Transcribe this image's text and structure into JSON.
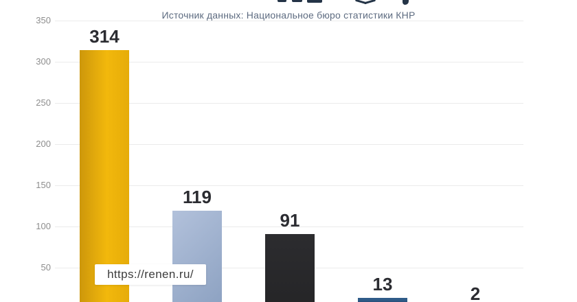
{
  "header": {
    "title_cut_off": true,
    "subtitle": "Источник данных: Национальное бюро статистики КНР",
    "title_color": "#243447",
    "subtitle_color": "#5d6b80"
  },
  "watermark": {
    "url": "https://renen.ru/"
  },
  "chart_data": {
    "type": "bar",
    "title": "",
    "subtitle": "Источник данных: Национальное бюро статистики КНР",
    "xlabel": "",
    "ylabel": "",
    "ylim": [
      0,
      350
    ],
    "yticks": [
      350,
      300,
      250,
      200,
      150,
      100,
      50
    ],
    "grid": true,
    "layout_note": "title and x-axis category labels are cropped outside the visible frame; y=0 baseline sits below the bottom edge",
    "values": [
      314,
      119,
      91,
      13,
      2
    ],
    "bars": [
      {
        "value": 314,
        "label": "314",
        "color": "#f0b60e",
        "css": "linear-gradient(90deg,#cd970b 0%,#f2b80c 55%,#e6ac09 100%)"
      },
      {
        "value": 119,
        "label": "119",
        "color": "#9cafce",
        "css": "linear-gradient(135deg,#b2c1db 0%,#8ca1c1 100%)"
      },
      {
        "value": 91,
        "label": "91",
        "color": "#272729",
        "css": "linear-gradient(180deg,#2c2c2f 0%,#252527 100%)"
      },
      {
        "value": 13,
        "label": "13",
        "color": "#1d3d63",
        "css": "linear-gradient(180deg,#2f5b88 0%,#2f5b88 22%,#1c3c62 60%,#1d3d63 100%)"
      },
      {
        "value": 2,
        "label": "2",
        "color": "#1d3d63",
        "css": "linear-gradient(180deg,#2f5b88 0%,#1d3d63 100%)"
      }
    ],
    "gridline_color": "#ebebeb",
    "tick_label_color": "#8d8d8d",
    "value_label_color": "#2b2c31"
  }
}
